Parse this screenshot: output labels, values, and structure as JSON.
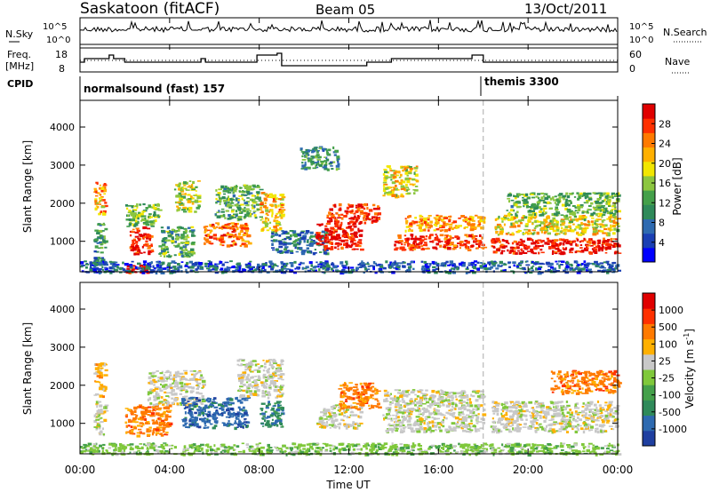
{
  "header": {
    "station": "Saskatoon (fitACF)",
    "beam": "Beam 05",
    "date": "13/Oct/2011"
  },
  "summary_panel": {
    "nsky_label": "N.Sky",
    "nsearch_label": "N.Search",
    "count_ticks": [
      "10^5",
      "10^0"
    ],
    "freq_label_line1": "Freq.",
    "freq_label_line2": "[MHz]",
    "freq_ticks": [
      "18",
      "8"
    ],
    "nave_label": "Nave",
    "nave_ticks": [
      "60",
      "0"
    ],
    "cpid_label": "CPID",
    "cpid_segments": [
      {
        "label": "normalsound (fast) 157",
        "start": "00:00",
        "end": "18:00"
      },
      {
        "label": "themis 3300",
        "start": "18:00",
        "end": "24:00"
      }
    ]
  },
  "chart_data": [
    {
      "type": "heatmap",
      "title": "",
      "ylabel": "Slant Range [km]",
      "xlabel": "",
      "x_range_hours": [
        0,
        24
      ],
      "ylim": [
        200,
        4700
      ],
      "y_ticks": [
        "4000",
        "3000",
        "2000",
        "1000"
      ],
      "colorbar": {
        "label": "Power [dB]",
        "ticks": [
          "28",
          "24",
          "20",
          "16",
          "12",
          "8",
          "4"
        ],
        "range": [
          0,
          30
        ],
        "colors": [
          "#0000ff",
          "#1a3fb4",
          "#2e6ab0",
          "#2f8a5a",
          "#44a04a",
          "#8cc63f",
          "#f2e600",
          "#ffb000",
          "#ff7a00",
          "#ff3000",
          "#e00000"
        ]
      },
      "echo_regions": [
        {
          "t0": 0.6,
          "t1": 1.1,
          "r0": 1700,
          "r1": 2600,
          "level": 21
        },
        {
          "t0": 0.6,
          "t1": 1.1,
          "r0": 700,
          "r1": 1500,
          "level": 10
        },
        {
          "t0": 0.6,
          "t1": 1.1,
          "r0": 400,
          "r1": 600,
          "level": 8
        },
        {
          "t0": 2.2,
          "t1": 3.2,
          "r0": 700,
          "r1": 1400,
          "level": 27
        },
        {
          "t0": 2.0,
          "t1": 3.5,
          "r0": 1400,
          "r1": 2000,
          "level": 14
        },
        {
          "t0": 2.0,
          "t1": 3.0,
          "r0": 200,
          "r1": 400,
          "level": 28
        },
        {
          "t0": 3.5,
          "t1": 5.0,
          "r0": 600,
          "r1": 1400,
          "level": 12
        },
        {
          "t0": 4.2,
          "t1": 5.3,
          "r0": 1800,
          "r1": 2600,
          "level": 16
        },
        {
          "t0": 5.5,
          "t1": 7.5,
          "r0": 900,
          "r1": 1500,
          "level": 24
        },
        {
          "t0": 6.0,
          "t1": 8.0,
          "r0": 1600,
          "r1": 2500,
          "level": 12
        },
        {
          "t0": 8.0,
          "t1": 9.0,
          "r0": 1300,
          "r1": 2300,
          "level": 20
        },
        {
          "t0": 8.5,
          "t1": 11.0,
          "r0": 700,
          "r1": 1300,
          "level": 8
        },
        {
          "t0": 9.8,
          "t1": 11.5,
          "r0": 2900,
          "r1": 3500,
          "level": 10
        },
        {
          "t0": 10.5,
          "t1": 12.5,
          "r0": 800,
          "r1": 1500,
          "level": 28
        },
        {
          "t0": 11.0,
          "t1": 13.3,
          "r0": 1500,
          "r1": 2000,
          "level": 27
        },
        {
          "t0": 13.5,
          "t1": 15.0,
          "r0": 2200,
          "r1": 3000,
          "level": 18
        },
        {
          "t0": 14.0,
          "t1": 18.0,
          "r0": 800,
          "r1": 1200,
          "level": 26
        },
        {
          "t0": 14.5,
          "t1": 18.0,
          "r0": 1300,
          "r1": 1700,
          "level": 22
        },
        {
          "t0": 18.3,
          "t1": 24.0,
          "r0": 700,
          "r1": 1100,
          "level": 28
        },
        {
          "t0": 18.5,
          "t1": 24.0,
          "r0": 1200,
          "r1": 1700,
          "level": 18
        },
        {
          "t0": 19.0,
          "t1": 24.0,
          "r0": 1700,
          "r1": 2300,
          "level": 13
        },
        {
          "t0": 0.0,
          "t1": 24.0,
          "r0": 200,
          "r1": 500,
          "level": 6
        }
      ]
    },
    {
      "type": "heatmap",
      "title": "",
      "ylabel": "Slant Range [km]",
      "xlabel": "Time UT",
      "x_ticks": [
        "00:00",
        "04:00",
        "08:00",
        "12:00",
        "16:00",
        "20:00",
        "00:00"
      ],
      "x_range_hours": [
        0,
        24
      ],
      "ylim": [
        200,
        4700
      ],
      "y_ticks": [
        "4000",
        "3000",
        "2000",
        "1000"
      ],
      "colorbar": {
        "label": "Velocity [m s^-1]",
        "ticks": [
          "1000",
          "500",
          "100",
          "25",
          "-25",
          "-100",
          "-500",
          "-1000"
        ],
        "colors": [
          "#1f3fa0",
          "#2e6ab0",
          "#2f8a5a",
          "#44a04a",
          "#7fc83a",
          "#c8c8c8",
          "#ffb000",
          "#ff7a00",
          "#ff3000",
          "#e00000"
        ]
      },
      "echo_regions": [
        {
          "t0": 0.6,
          "t1": 1.1,
          "r0": 1700,
          "r1": 2600,
          "cls": 6
        },
        {
          "t0": 0.6,
          "t1": 1.1,
          "r0": 700,
          "r1": 1600,
          "cls": 5
        },
        {
          "t0": 2.0,
          "t1": 4.0,
          "r0": 700,
          "r1": 1500,
          "cls": 7
        },
        {
          "t0": 3.0,
          "t1": 5.5,
          "r0": 1500,
          "r1": 2400,
          "cls": 5
        },
        {
          "t0": 4.5,
          "t1": 7.5,
          "r0": 900,
          "r1": 1700,
          "cls": 1
        },
        {
          "t0": 7.0,
          "t1": 9.0,
          "r0": 1700,
          "r1": 2700,
          "cls": 5
        },
        {
          "t0": 8.0,
          "t1": 9.0,
          "r0": 900,
          "r1": 1600,
          "cls": 2
        },
        {
          "t0": 10.5,
          "t1": 12.5,
          "r0": 900,
          "r1": 1500,
          "cls": 5
        },
        {
          "t0": 11.5,
          "t1": 13.3,
          "r0": 1400,
          "r1": 2100,
          "cls": 7
        },
        {
          "t0": 13.5,
          "t1": 18.0,
          "r0": 800,
          "r1": 1900,
          "cls": 5
        },
        {
          "t0": 18.3,
          "t1": 24.0,
          "r0": 800,
          "r1": 1600,
          "cls": 5
        },
        {
          "t0": 21.0,
          "t1": 24.0,
          "r0": 1800,
          "r1": 2400,
          "cls": 7
        },
        {
          "t0": 0.0,
          "t1": 24.0,
          "r0": 200,
          "r1": 500,
          "cls": 4
        }
      ]
    }
  ]
}
